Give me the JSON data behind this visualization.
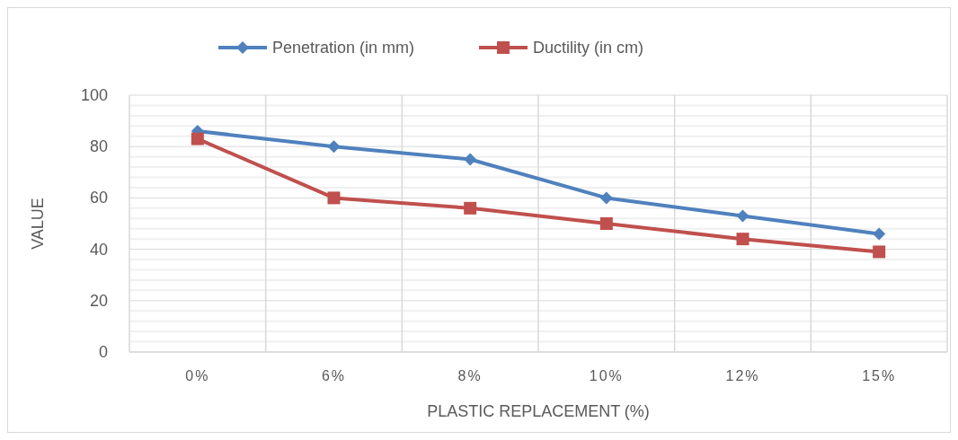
{
  "chart_data": {
    "type": "line",
    "xlabel": "PLASTIC REPLACEMENT (%)",
    "ylabel": "VALUE",
    "categories": [
      "0%",
      "6%",
      "8%",
      "10%",
      "12%",
      "15%"
    ],
    "series": [
      {
        "name": "Penetration (in mm)",
        "color": "#4f81bd",
        "marker": "diamond",
        "values": [
          86,
          80,
          75,
          60,
          53,
          46
        ]
      },
      {
        "name": "Ductility (in cm)",
        "color": "#c0504d",
        "marker": "square",
        "values": [
          83,
          60,
          56,
          50,
          44,
          39
        ]
      }
    ],
    "ylim": [
      0,
      100
    ],
    "yticks": [
      0,
      {
        "value": 4,
        "label": null
      },
      {
        "value": 8,
        "label": null
      },
      {
        "value": 12,
        "label": null
      },
      {
        "value": 16,
        "label": null
      },
      20,
      {
        "value": 24,
        "label": null
      },
      {
        "value": 28,
        "label": null
      },
      {
        "value": 32,
        "label": null
      },
      {
        "value": 36,
        "label": null
      },
      40,
      {
        "value": 44,
        "label": null
      },
      {
        "value": 48,
        "label": null
      },
      {
        "value": 52,
        "label": null
      },
      {
        "value": 56,
        "label": null
      },
      60,
      {
        "value": 64,
        "label": null
      },
      {
        "value": 68,
        "label": null
      },
      {
        "value": 72,
        "label": null
      },
      {
        "value": 76,
        "label": null
      },
      80,
      {
        "value": 84,
        "label": null
      },
      {
        "value": 88,
        "label": null
      },
      {
        "value": 92,
        "label": null
      },
      {
        "value": 96,
        "label": null
      },
      100
    ],
    "grid": true,
    "legend": "top",
    "line_style": "solid"
  }
}
